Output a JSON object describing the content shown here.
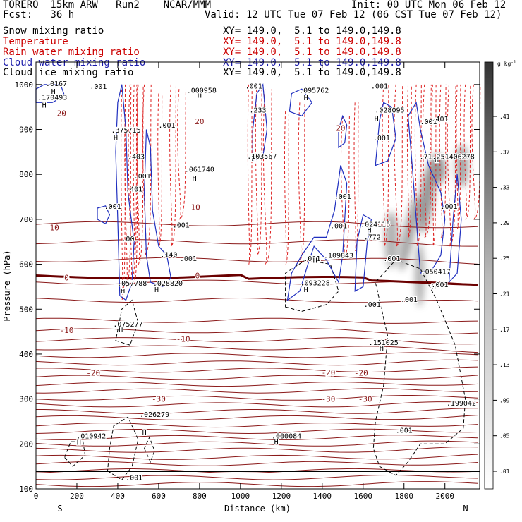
{
  "header": {
    "model": "TORERO  15km ARW   Run2    NCAR/MMM",
    "init": "Init: 00 UTC Mon 06 Feb 12",
    "fcst": "Fcst:   36 h",
    "valid": "Valid: 12 UTC Tue 07 Feb 12 (06 CST Tue 07 Feb 12)"
  },
  "legend": [
    {
      "label": "Snow mixing ratio",
      "xy": "",
      "color": "#000000"
    },
    {
      "label": "Temperature",
      "xy": "XY= 149.0,  5.1 to 149.0,149.8",
      "color": "#cc0000"
    },
    {
      "label": "Rain water mixing ratio",
      "xy": "XY= 149.0,  5.1 to 149.0,149.8",
      "color": "#cc0000"
    },
    {
      "label": "Cloud water mixing ratio",
      "xy": "XY= 149.0,  5.1 to 149.0,149.8",
      "color": "#1a1aaa"
    },
    {
      "label": "Cloud ice mixing ratio",
      "xy": "XY= 149.0,  5.1 to 149.0,149.8",
      "color": "#000000"
    }
  ],
  "snow_xy": "XY= 149.0,  5.1 to 149.0,149.8",
  "colors": {
    "temperature": "#8b1a1a",
    "freezing": "#6b0000",
    "rain": "#dd2222",
    "cloud_water": "#1f2fbf",
    "cloud_ice": "#000000"
  },
  "chart_data": {
    "type": "cross-section",
    "xlabel": "Distance (km)",
    "ylabel": "Pressure (hPa)",
    "xlim": [
      0,
      2170
    ],
    "ylim": [
      1050,
      100
    ],
    "x_ticks": [
      "0",
      "200",
      "400",
      "600",
      "800",
      "1000",
      "1200",
      "1400",
      "1600",
      "1800",
      "2000"
    ],
    "y_ticks": [
      "100",
      "200",
      "300",
      "400",
      "500",
      "600",
      "700",
      "800",
      "900",
      "1000"
    ],
    "x_end_labels": {
      "left": "S",
      "right": "N"
    },
    "colorbar": {
      "unit": "g kg",
      "unit_exp": "-1",
      "ticks": [
        ".01",
        ".05",
        ".09",
        ".13",
        ".17",
        ".21",
        ".25",
        ".29",
        ".33",
        ".37",
        ".41"
      ]
    },
    "temperature_labels": [
      {
        "text": "-30",
        "x": 600,
        "p": 300
      },
      {
        "text": "-30",
        "x": 1430,
        "p": 300
      },
      {
        "text": "-30",
        "x": 1610,
        "p": 300
      },
      {
        "text": "-20",
        "x": 280,
        "p": 358
      },
      {
        "text": "-20",
        "x": 1430,
        "p": 359
      },
      {
        "text": "-20",
        "x": 1590,
        "p": 358
      },
      {
        "text": "-10",
        "x": 720,
        "p": 434
      },
      {
        "text": "-10",
        "x": 150,
        "p": 453
      },
      {
        "text": "0",
        "x": 150,
        "p": 570
      },
      {
        "text": "0",
        "x": 790,
        "p": 575
      },
      {
        "text": "10",
        "x": 90,
        "p": 682
      },
      {
        "text": "10",
        "x": 780,
        "p": 727
      },
      {
        "text": "20",
        "x": 125,
        "p": 936
      },
      {
        "text": "20",
        "x": 800,
        "p": 918
      },
      {
        "text": "20",
        "x": 1490,
        "p": 903
      }
    ],
    "highs": [
      {
        "text": "H",
        "x": 210,
        "p": 198
      },
      {
        "text": ".010942",
        "x": 270,
        "p": 212
      },
      {
        "text": "H",
        "x": 530,
        "p": 220
      },
      {
        "text": ".026279",
        "x": 580,
        "p": 260
      },
      {
        "text": ".001",
        "x": 480,
        "p": 120
      },
      {
        "text": "H",
        "x": 1175,
        "p": 200
      },
      {
        "text": ".000084",
        "x": 1225,
        "p": 212
      },
      {
        "text": ".001",
        "x": 1800,
        "p": 225
      },
      {
        "text": ".199042",
        "x": 2080,
        "p": 285
      },
      {
        "text": "H",
        "x": 1690,
        "p": 408
      },
      {
        "text": ".151025",
        "x": 1700,
        "p": 420
      },
      {
        "text": "H",
        "x": 415,
        "p": 449
      },
      {
        "text": ".075277",
        "x": 450,
        "p": 461
      },
      {
        "text": ".001",
        "x": 1645,
        "p": 505
      },
      {
        "text": ".001",
        "x": 1825,
        "p": 516
      },
      {
        "text": "H",
        "x": 425,
        "p": 535
      },
      {
        "text": ".057788",
        "x": 470,
        "p": 552
      },
      {
        "text": "H",
        "x": 590,
        "p": 538
      },
      {
        "text": ".028820",
        "x": 645,
        "p": 552
      },
      {
        "text": "H",
        "x": 1320,
        "p": 538
      },
      {
        "text": ".093228",
        "x": 1365,
        "p": 553
      },
      {
        "text": "H",
        "x": 1945,
        "p": 545
      },
      {
        "text": ".001",
        "x": 1975,
        "p": 549
      },
      {
        "text": ".050417",
        "x": 1955,
        "p": 578
      },
      {
        "text": ".001",
        "x": 1350,
        "p": 607
      },
      {
        "text": "H",
        "x": 1365,
        "p": 603
      },
      {
        "text": ".109843",
        "x": 1480,
        "p": 614
      },
      {
        "text": ".001",
        "x": 1740,
        "p": 607
      },
      {
        "text": ".001",
        "x": 745,
        "p": 607
      },
      {
        "text": ".140",
        "x": 650,
        "p": 616
      },
      {
        "text": ".00",
        "x": 450,
        "p": 651
      },
      {
        "text": ".772",
        "x": 1645,
        "p": 655
      },
      {
        "text": "H",
        "x": 1630,
        "p": 671
      },
      {
        "text": ".024115",
        "x": 1660,
        "p": 683
      },
      {
        "text": ".001",
        "x": 1480,
        "p": 680
      },
      {
        "text": ".001",
        "x": 710,
        "p": 682
      },
      {
        "text": ".001",
        "x": 375,
        "p": 723
      },
      {
        "text": ".001",
        "x": 2020,
        "p": 723
      },
      {
        "text": ".001",
        "x": 1500,
        "p": 745
      },
      {
        "text": ".401",
        "x": 480,
        "p": 762
      },
      {
        "text": ".001",
        "x": 520,
        "p": 791
      },
      {
        "text": "H",
        "x": 775,
        "p": 786
      },
      {
        "text": ".061740",
        "x": 800,
        "p": 806
      },
      {
        "text": ".403",
        "x": 490,
        "p": 834
      },
      {
        "text": "H",
        "x": 1065,
        "p": 830
      },
      {
        "text": ".103567",
        "x": 1105,
        "p": 835
      },
      {
        "text": "H",
        "x": 1960,
        "p": 827
      },
      {
        "text": ".71.251406278",
        "x": 2010,
        "p": 834
      },
      {
        "text": "H",
        "x": 390,
        "p": 876
      },
      {
        "text": ".375715",
        "x": 440,
        "p": 893
      },
      {
        "text": ".001",
        "x": 1690,
        "p": 876
      },
      {
        "text": ".001",
        "x": 640,
        "p": 904
      },
      {
        "text": ".001",
        "x": 1920,
        "p": 912
      },
      {
        "text": ".401",
        "x": 1975,
        "p": 918
      },
      {
        "text": "H",
        "x": 1665,
        "p": 918
      },
      {
        "text": ".028095",
        "x": 1730,
        "p": 938
      },
      {
        "text": ".233",
        "x": 1085,
        "p": 938
      },
      {
        "text": "H",
        "x": 40,
        "p": 949
      },
      {
        "text": "H",
        "x": 1320,
        "p": 965
      },
      {
        "text": ".170493",
        "x": 80,
        "p": 966
      },
      {
        "text": "H",
        "x": 800,
        "p": 971
      },
      {
        "text": ".000958",
        "x": 810,
        "p": 982
      },
      {
        "text": ".095762",
        "x": 1360,
        "p": 982
      },
      {
        "text": "H",
        "x": 85,
        "p": 979
      },
      {
        "text": ".0167",
        "x": 100,
        "p": 997
      },
      {
        "text": ".001",
        "x": 305,
        "p": 990
      },
      {
        "text": ".001",
        "x": 1065,
        "p": 991
      },
      {
        "text": ".001",
        "x": 1680,
        "p": 991
      }
    ]
  }
}
